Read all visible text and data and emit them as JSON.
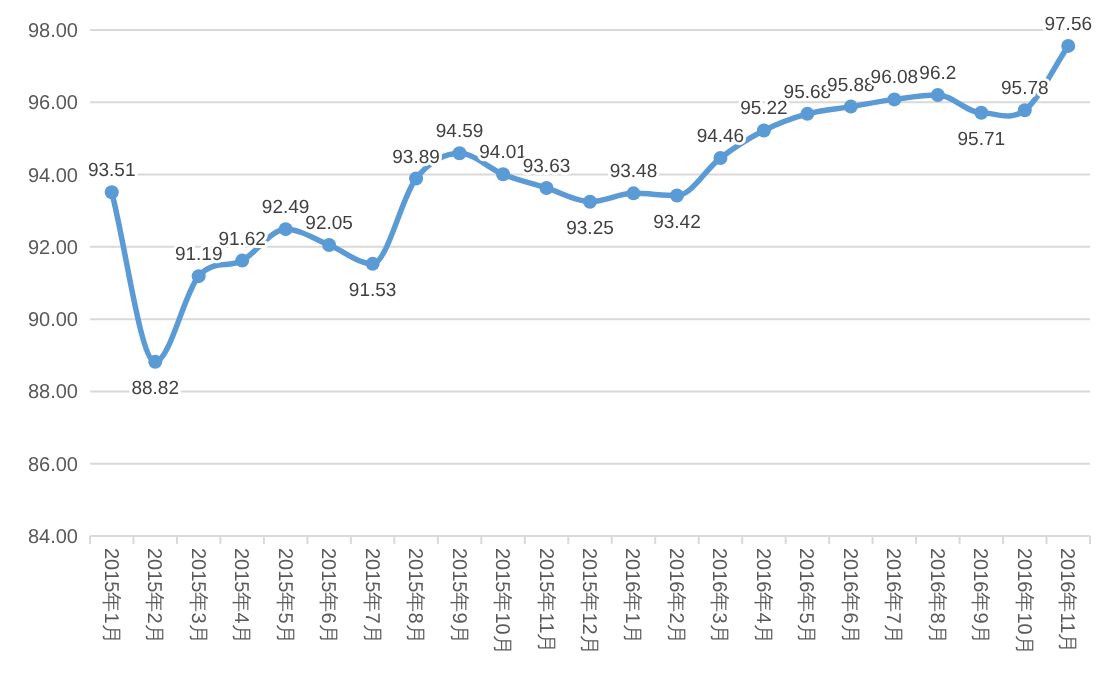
{
  "chart_data": {
    "type": "line",
    "categories": [
      "2015年1月",
      "2015年2月",
      "2015年3月",
      "2015年4月",
      "2015年5月",
      "2015年6月",
      "2015年7月",
      "2015年8月",
      "2015年9月",
      "2015年10月",
      "2015年11月",
      "2015年12月",
      "2016年1月",
      "2016年2月",
      "2016年3月",
      "2016年4月",
      "2016年5月",
      "2016年6月",
      "2016年7月",
      "2016年8月",
      "2016年9月",
      "2016年10月",
      "2016年11月"
    ],
    "series": [
      {
        "color": "#5b9bd5",
        "values": [
          93.51,
          88.82,
          91.19,
          91.62,
          92.49,
          92.05,
          91.53,
          93.89,
          94.59,
          94.01,
          93.63,
          93.25,
          93.48,
          93.42,
          94.46,
          95.22,
          95.68,
          95.88,
          96.08,
          96.2,
          95.71,
          95.78,
          97.56
        ]
      }
    ],
    "ylim": [
      84,
      98
    ],
    "yticks": [
      {
        "value": 84,
        "label": "84.00"
      },
      {
        "value": 86,
        "label": "86.00"
      },
      {
        "value": 88,
        "label": "88.00"
      },
      {
        "value": 90,
        "label": "90.00"
      },
      {
        "value": 92,
        "label": "92.00"
      },
      {
        "value": 94,
        "label": "94.00"
      },
      {
        "value": 96,
        "label": "96.00"
      },
      {
        "value": 98,
        "label": "98.00"
      }
    ],
    "grid": "y",
    "marker": "circle",
    "line_style": "solid",
    "data_labels": true
  }
}
